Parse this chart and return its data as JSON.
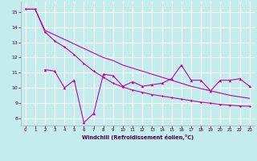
{
  "xlabel": "Windchill (Refroidissement éolien,°C)",
  "xlim": [
    -0.5,
    23.5
  ],
  "ylim": [
    7.5,
    15.7
  ],
  "yticks": [
    8,
    9,
    10,
    11,
    12,
    13,
    14,
    15
  ],
  "xticks": [
    0,
    1,
    2,
    3,
    4,
    5,
    6,
    7,
    8,
    9,
    10,
    11,
    12,
    13,
    14,
    15,
    16,
    17,
    18,
    19,
    20,
    21,
    22,
    23
  ],
  "background_color": "#c5eced",
  "grid_color": "#c8d8d8",
  "line_color": "#bb00aa",
  "series1_x": [
    0,
    1,
    2,
    3,
    4,
    5,
    6,
    7,
    8,
    9,
    10,
    11,
    12,
    13,
    14,
    15,
    16,
    17,
    18,
    19,
    20,
    21,
    22,
    23
  ],
  "series1_y": [
    15.2,
    15.2,
    13.8,
    13.5,
    13.2,
    12.9,
    12.6,
    12.3,
    12.0,
    11.8,
    11.5,
    11.3,
    11.1,
    10.9,
    10.7,
    10.5,
    10.3,
    10.1,
    9.95,
    9.8,
    9.65,
    9.5,
    9.4,
    9.3
  ],
  "series2_x": [
    0,
    1,
    2,
    3,
    4,
    5,
    6,
    7,
    8,
    9,
    10,
    11,
    12,
    13,
    14,
    15,
    16,
    17,
    18,
    19,
    20,
    21,
    22,
    23
  ],
  "series2_y": [
    15.2,
    15.2,
    13.7,
    13.1,
    12.7,
    12.2,
    11.6,
    11.1,
    10.7,
    10.3,
    10.05,
    9.85,
    9.7,
    9.55,
    9.45,
    9.35,
    9.25,
    9.15,
    9.05,
    8.98,
    8.9,
    8.85,
    8.8,
    8.78
  ],
  "series3_x": [
    2,
    3,
    4,
    5,
    6,
    7,
    8,
    9,
    10,
    11,
    12,
    13,
    14,
    15,
    16,
    17,
    18,
    19,
    20,
    21,
    22,
    23
  ],
  "series3_y": [
    11.2,
    11.1,
    10.0,
    10.5,
    7.7,
    8.3,
    10.9,
    10.8,
    10.1,
    10.4,
    10.1,
    10.2,
    10.3,
    10.6,
    11.5,
    10.5,
    10.5,
    9.8,
    10.5,
    10.5,
    10.6,
    10.1
  ]
}
